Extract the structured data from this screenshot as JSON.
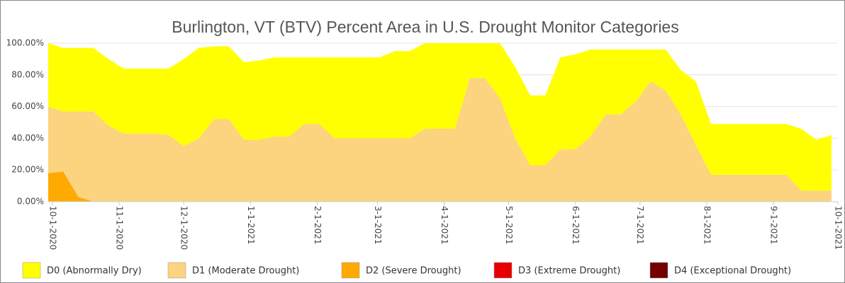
{
  "chart_data": {
    "type": "stacked-area",
    "title": "Burlington, VT (BTV) Percent Area in U.S. Drought Monitor Categories",
    "x": [
      "9-29-2020",
      "10-6-2020",
      "10-13-2020",
      "10-20-2020",
      "10-27-2020",
      "11-3-2020",
      "11-10-2020",
      "11-17-2020",
      "11-24-2020",
      "12-1-2020",
      "12-8-2020",
      "12-15-2020",
      "12-22-2020",
      "12-29-2020",
      "1-5-2021",
      "1-12-2021",
      "1-19-2021",
      "1-26-2021",
      "2-2-2021",
      "2-9-2021",
      "2-16-2021",
      "2-23-2021",
      "3-2-2021",
      "3-9-2021",
      "3-16-2021",
      "3-23-2021",
      "3-30-2021",
      "4-6-2021",
      "4-13-2021",
      "4-20-2021",
      "4-27-2021",
      "5-4-2021",
      "5-11-2021",
      "5-18-2021",
      "5-25-2021",
      "6-1-2021",
      "6-8-2021",
      "6-15-2021",
      "6-22-2021",
      "6-29-2021",
      "7-6-2021",
      "7-13-2021",
      "7-20-2021",
      "7-27-2021",
      "8-3-2021",
      "8-10-2021",
      "8-17-2021",
      "8-24-2021",
      "8-31-2021",
      "9-7-2021",
      "9-14-2021",
      "9-21-2021",
      "9-28-2021"
    ],
    "xlim": [
      "9-29-2020",
      "10-1-2021"
    ],
    "xticks": [
      "10-1-2020",
      "11-1-2020",
      "12-1-2020",
      "1-1-2021",
      "2-1-2021",
      "3-1-2021",
      "4-1-2021",
      "5-1-2021",
      "6-1-2021",
      "7-1-2021",
      "8-1-2021",
      "9-1-2021",
      "10-1-2021"
    ],
    "ylim": [
      0,
      100
    ],
    "yticks": [
      {
        "value": 0,
        "label": "0.00%"
      },
      {
        "value": 20,
        "label": "20.00%"
      },
      {
        "value": 40,
        "label": "40.00%"
      },
      {
        "value": 60,
        "label": "60.00%"
      },
      {
        "value": 80,
        "label": "80.00%"
      },
      {
        "value": 100,
        "label": "100.00%"
      }
    ],
    "grid": true,
    "series": [
      {
        "name": "D0 (Abnormally Dry)",
        "color": "#ffff00",
        "values": [
          40,
          40,
          40,
          40,
          42,
          41,
          41,
          41,
          42,
          55,
          57,
          46,
          46,
          49,
          50,
          50,
          50,
          42,
          42,
          51,
          51,
          51,
          51,
          55,
          55,
          54,
          54,
          54,
          22,
          22,
          35,
          45,
          44,
          44,
          58,
          60,
          55,
          41,
          41,
          33,
          20,
          26,
          28,
          40,
          32,
          32,
          32,
          32,
          32,
          32,
          39,
          32,
          35
        ]
      },
      {
        "name": "D1 (Moderate Drought)",
        "color": "#fcd37f",
        "values": [
          42,
          38,
          54,
          57,
          48,
          43,
          43,
          43,
          42,
          35,
          40,
          52,
          52,
          39,
          39,
          41,
          41,
          49,
          49,
          40,
          40,
          40,
          40,
          40,
          40,
          46,
          46,
          46,
          78,
          78,
          65,
          40,
          23,
          23,
          33,
          33,
          41,
          55,
          55,
          63,
          76,
          70,
          55,
          36,
          17,
          17,
          17,
          17,
          17,
          17,
          7,
          7,
          7
        ]
      },
      {
        "name": "D2 (Severe Drought)",
        "color": "#ffaa00",
        "values": [
          18,
          19,
          3,
          0,
          0,
          0,
          0,
          0,
          0,
          0,
          0,
          0,
          0,
          0,
          0,
          0,
          0,
          0,
          0,
          0,
          0,
          0,
          0,
          0,
          0,
          0,
          0,
          0,
          0,
          0,
          0,
          0,
          0,
          0,
          0,
          0,
          0,
          0,
          0,
          0,
          0,
          0,
          0,
          0,
          0,
          0,
          0,
          0,
          0,
          0,
          0,
          0,
          0
        ]
      },
      {
        "name": "D3 (Extreme Drought)",
        "color": "#e60000",
        "values": [
          0,
          0,
          0,
          0,
          0,
          0,
          0,
          0,
          0,
          0,
          0,
          0,
          0,
          0,
          0,
          0,
          0,
          0,
          0,
          0,
          0,
          0,
          0,
          0,
          0,
          0,
          0,
          0,
          0,
          0,
          0,
          0,
          0,
          0,
          0,
          0,
          0,
          0,
          0,
          0,
          0,
          0,
          0,
          0,
          0,
          0,
          0,
          0,
          0,
          0,
          0,
          0,
          0
        ]
      },
      {
        "name": "D4 (Exceptional Drought)",
        "color": "#730000",
        "values": [
          0,
          0,
          0,
          0,
          0,
          0,
          0,
          0,
          0,
          0,
          0,
          0,
          0,
          0,
          0,
          0,
          0,
          0,
          0,
          0,
          0,
          0,
          0,
          0,
          0,
          0,
          0,
          0,
          0,
          0,
          0,
          0,
          0,
          0,
          0,
          0,
          0,
          0,
          0,
          0,
          0,
          0,
          0,
          0,
          0,
          0,
          0,
          0,
          0,
          0,
          0,
          0,
          0
        ]
      }
    ]
  }
}
